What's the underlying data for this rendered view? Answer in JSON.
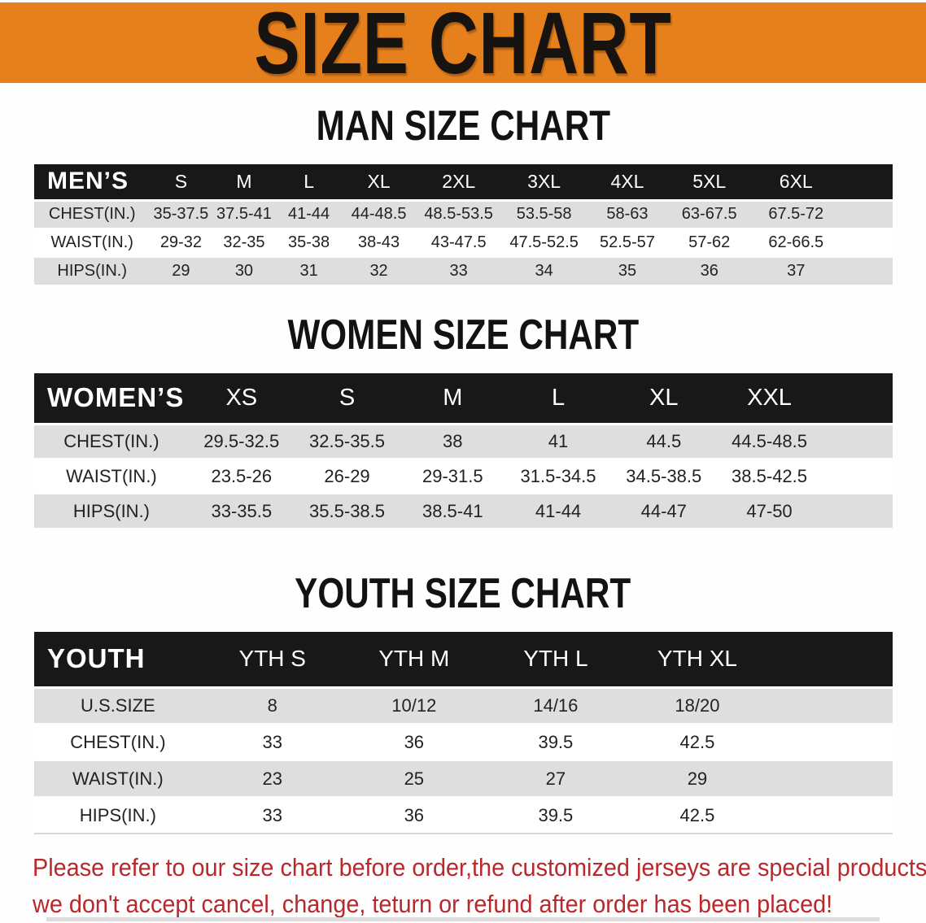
{
  "banner": {
    "title": "SIZE CHART"
  },
  "sections": {
    "men": {
      "heading": "MAN SIZE CHART"
    },
    "women": {
      "heading": "WOMEN SIZE CHART"
    },
    "youth": {
      "heading": "YOUTH SIZE CHART"
    }
  },
  "tables": {
    "men": {
      "label": "MEN’S",
      "columns": [
        "S",
        "M",
        "L",
        "XL",
        "2XL",
        "3XL",
        "4XL",
        "5XL",
        "6XL"
      ],
      "rows": [
        {
          "label": "CHEST(IN.)",
          "values": [
            "35-37.5",
            "37.5-41",
            "41-44",
            "44-48.5",
            "48.5-53.5",
            "53.5-58",
            "58-63",
            "63-67.5",
            "67.5-72"
          ]
        },
        {
          "label": "WAIST(IN.)",
          "values": [
            "29-32",
            "32-35",
            "35-38",
            "38-43",
            "43-47.5",
            "47.5-52.5",
            "52.5-57",
            "57-62",
            "62-66.5"
          ]
        },
        {
          "label": "HIPS(IN.)",
          "values": [
            "29",
            "30",
            "31",
            "32",
            "33",
            "34",
            "35",
            "36",
            "37"
          ]
        }
      ]
    },
    "women": {
      "label": "WOMEN’S",
      "columns": [
        "XS",
        "S",
        "M",
        "L",
        "XL",
        "XXL"
      ],
      "rows": [
        {
          "label": "CHEST(IN.)",
          "values": [
            "29.5-32.5",
            "32.5-35.5",
            "38",
            "41",
            "44.5",
            "44.5-48.5"
          ]
        },
        {
          "label": "WAIST(IN.)",
          "values": [
            "23.5-26",
            "26-29",
            "29-31.5",
            "31.5-34.5",
            "34.5-38.5",
            "38.5-42.5"
          ]
        },
        {
          "label": "HIPS(IN.)",
          "values": [
            "33-35.5",
            "35.5-38.5",
            "38.5-41",
            "41-44",
            "44-47",
            "47-50"
          ]
        }
      ]
    },
    "youth": {
      "label": "YOUTH",
      "columns": [
        "YTH S",
        "YTH M",
        "YTH L",
        "YTH XL"
      ],
      "rows": [
        {
          "label": "U.S.SIZE",
          "values": [
            "8",
            "10/12",
            "14/16",
            "18/20"
          ]
        },
        {
          "label": "CHEST(IN.)",
          "values": [
            "33",
            "36",
            "39.5",
            "42.5"
          ]
        },
        {
          "label": "WAIST(IN.)",
          "values": [
            "23",
            "25",
            "27",
            "29"
          ]
        },
        {
          "label": "HIPS(IN.)",
          "values": [
            "33",
            "36",
            "39.5",
            "42.5"
          ]
        }
      ]
    }
  },
  "notice": {
    "line1": "Please refer to our size chart before order,the customized jerseys are special products,",
    "line2": "we don't accept cancel, change, teturn or refund after order has been placed!"
  },
  "colors": {
    "banner_bg": "#E6801C",
    "banner_text": "#161310",
    "bar_bg": "#181818",
    "bar_text": "#FFFFFF",
    "row_alt": "#DEDEDE",
    "row_plain": "#FFFFFF",
    "heading": "#121212",
    "cell_text": "#222222",
    "notice": "#B9282C"
  }
}
